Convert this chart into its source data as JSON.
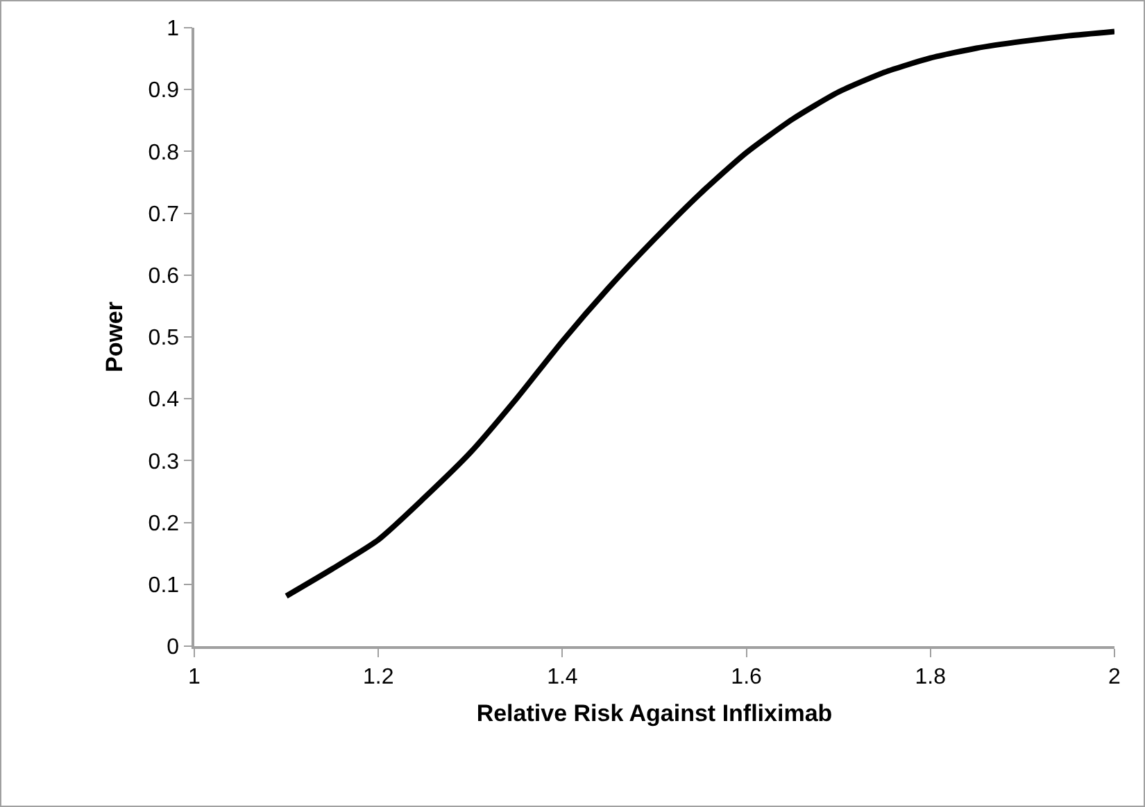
{
  "chart_data": {
    "type": "line",
    "xlabel": "Relative Risk Against Infliximab",
    "ylabel": "Power",
    "x": [
      1.1,
      1.15,
      1.2,
      1.25,
      1.3,
      1.35,
      1.4,
      1.45,
      1.5,
      1.55,
      1.6,
      1.65,
      1.7,
      1.75,
      1.8,
      1.85,
      1.9,
      1.95,
      2.0
    ],
    "series": [
      {
        "color": "#000000",
        "values": [
          0.081,
          0.125,
          0.172,
          0.24,
          0.313,
          0.4,
          0.493,
          0.579,
          0.658,
          0.732,
          0.798,
          0.852,
          0.896,
          0.928,
          0.951,
          0.967,
          0.978,
          0.987,
          0.994
        ]
      }
    ],
    "xlim": [
      1,
      2
    ],
    "xticks": [
      1,
      1.2,
      1.4,
      1.6,
      1.8,
      2
    ],
    "ylim": [
      0,
      1
    ],
    "yticks": [
      0,
      0.1,
      0.2,
      0.3,
      0.4,
      0.5,
      0.6,
      0.7,
      0.8,
      0.9,
      1
    ],
    "grid": false,
    "marker": "none",
    "line_style": "solid"
  }
}
